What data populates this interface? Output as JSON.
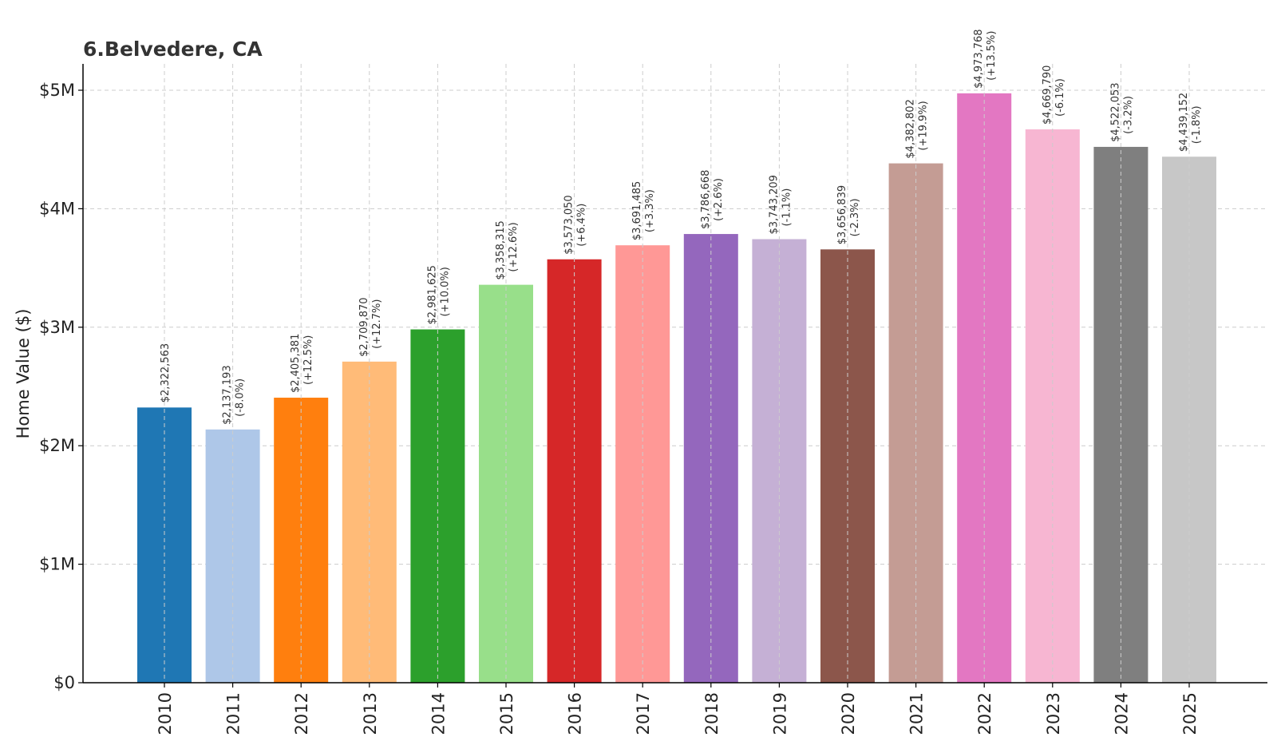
{
  "chart_data": {
    "type": "bar",
    "title": "6.Belvedere, CA",
    "xlabel": "",
    "ylabel": "Home Value ($)",
    "ylim": [
      0,
      5200000
    ],
    "grid": true,
    "y_ticks": [
      {
        "value": 0,
        "label": "$0"
      },
      {
        "value": 1000000,
        "label": "$1M"
      },
      {
        "value": 2000000,
        "label": "$2M"
      },
      {
        "value": 3000000,
        "label": "$3M"
      },
      {
        "value": 4000000,
        "label": "$4M"
      },
      {
        "value": 5000000,
        "label": "$5M"
      }
    ],
    "categories": [
      "2010",
      "2011",
      "2012",
      "2013",
      "2014",
      "2015",
      "2016",
      "2017",
      "2018",
      "2019",
      "2020",
      "2021",
      "2022",
      "2023",
      "2024",
      "2025"
    ],
    "values": [
      2322563,
      2137193,
      2405381,
      2709870,
      2981625,
      3358315,
      3573050,
      3691485,
      3786668,
      3743209,
      3656839,
      4382802,
      4973768,
      4669790,
      4522053,
      4439152
    ],
    "value_labels": [
      "$2,322,563",
      "$2,137,193",
      "$2,405,381",
      "$2,709,870",
      "$2,981,625",
      "$3,358,315",
      "$3,573,050",
      "$3,691,485",
      "$3,786,668",
      "$3,743,209",
      "$3,656,839",
      "$4,382,802",
      "$4,973,768",
      "$4,669,790",
      "$4,522,053",
      "$4,439,152"
    ],
    "change_labels": [
      "",
      "(-8.0%)",
      "(+12.5%)",
      "(+12.7%)",
      "(+10.0%)",
      "(+12.6%)",
      "(+6.4%)",
      "(+3.3%)",
      "(+2.6%)",
      "(-1.1%)",
      "(-2.3%)",
      "(+19.9%)",
      "(+13.5%)",
      "(-6.1%)",
      "(-3.2%)",
      "(-1.8%)"
    ],
    "colors": [
      "#1f77b4",
      "#aec7e8",
      "#ff7f0e",
      "#ffbb78",
      "#2ca02c",
      "#98df8a",
      "#d62728",
      "#ff9896",
      "#9467bd",
      "#c5b0d5",
      "#8c564b",
      "#c49c94",
      "#e377c2",
      "#f7b6d2",
      "#7f7f7f",
      "#c7c7c7"
    ]
  }
}
